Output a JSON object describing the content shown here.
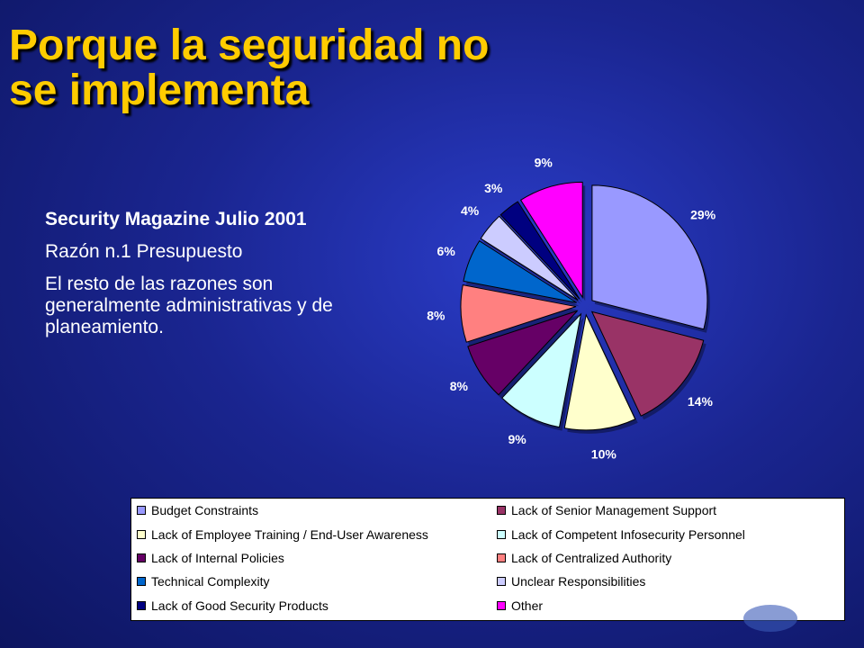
{
  "slide": {
    "title_line1": "Porque la seguridad no",
    "title_line2": "se implementa",
    "body": {
      "source": "Security Magazine Julio 2001",
      "reason1": "Razón n.1 Presupuesto",
      "rest": "El resto de las razones son generalmente administrativas y de planeamiento."
    }
  },
  "chart_data": {
    "type": "pie",
    "title": "",
    "categories": [
      "Budget Constraints",
      "Lack of Senior Management Support",
      "Lack of Employee Training / End-User Awareness",
      "Lack of Competent Infosecurity Personnel",
      "Lack of Internal Policies",
      "Lack of Centralized Authority",
      "Technical Complexity",
      "Unclear Responsibilities",
      "Lack of Good Security Products",
      "Other"
    ],
    "values": [
      29,
      14,
      10,
      9,
      8,
      8,
      6,
      4,
      3,
      9
    ],
    "labels": [
      "29%",
      "14%",
      "10%",
      "9%",
      "8%",
      "8%",
      "6%",
      "4%",
      "3%",
      "9%"
    ],
    "order_clockwise_from_top": [
      "Budget Constraints",
      "Lack of Senior Management Support",
      "Lack of Employee Training / End-User Awareness",
      "Lack of Competent Infosecurity Personnel",
      "Lack of Internal Policies",
      "Lack of Centralized Authority",
      "Technical Complexity",
      "Unclear Responsibilities",
      "Lack of Good Security Products",
      "Other"
    ],
    "colors": [
      "#9999ff",
      "#993366",
      "#ffffcc",
      "#ccffff",
      "#660066",
      "#ff8080",
      "#0066cc",
      "#ccccff",
      "#000080",
      "#ff00ff"
    ],
    "exploded": true,
    "legend_position": "bottom"
  }
}
